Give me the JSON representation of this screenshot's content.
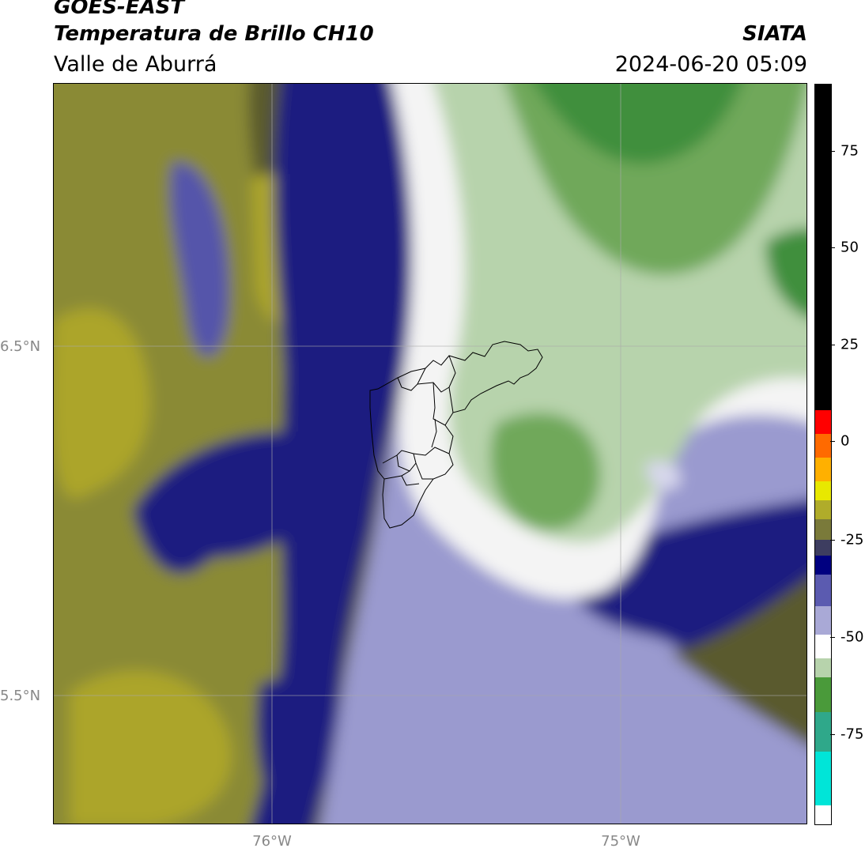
{
  "header": {
    "satellite": "GOES-EAST",
    "product": "Temperatura de Brillo CH10",
    "region": "Valle de Aburrá",
    "agency": "SIATA",
    "datetime": "2024-06-20 05:09"
  },
  "axes": {
    "lat_labels": [
      "6.5°N",
      "5.5°N"
    ],
    "lon_labels": [
      "76°W",
      "75°W"
    ]
  },
  "colorbar": {
    "ticks": [
      "75",
      "50",
      "25",
      "0",
      "-25",
      "-50",
      "-75"
    ],
    "colors": [
      "#00e5d8",
      "#2fa88a",
      "#4a9a3a",
      "#8fbf7d",
      "#ffffff",
      "#a9a9d6",
      "#5b5bb0",
      "#000080",
      "#3d3d60",
      "#7a7a3a",
      "#b0ac2a",
      "#e8e800",
      "#ffb000",
      "#ff5000",
      "#ff0000",
      "#000000"
    ]
  },
  "map": {
    "colors": {
      "yellow_dark": "#5a5a2e",
      "yellow_mid": "#8a8a35",
      "yellow_bright": "#aca52a",
      "navy": "#1a1a80",
      "blue_mid": "#5555aa",
      "lavender": "#9a9acf",
      "light": "#d7d7ec",
      "white": "#f4f4f4",
      "green_light": "#b7d3ac",
      "green_mid": "#6fa85a",
      "green_dark": "#3f8f3c",
      "border": "#000000"
    }
  }
}
